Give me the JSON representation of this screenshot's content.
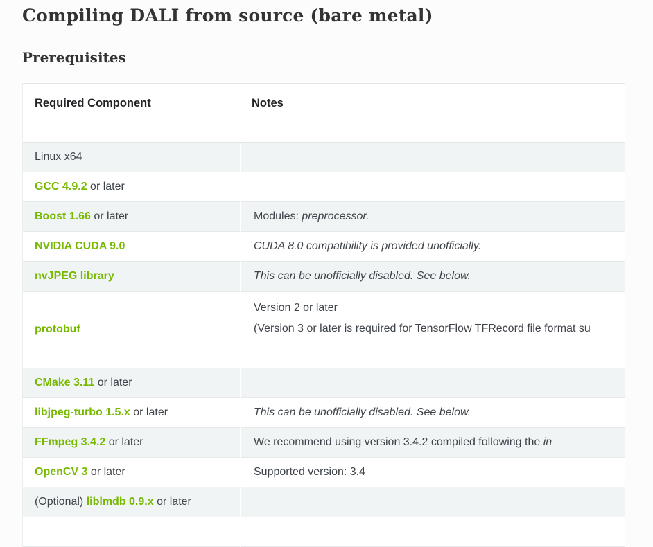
{
  "page": {
    "title": "Compiling DALI from source (bare metal)",
    "section": "Prerequisites"
  },
  "colors": {
    "link_green": "#76b900",
    "row_stripe": "#f1f4f5",
    "heading_text": "#333333",
    "body_text": "#3f444a",
    "table_border": "#e2e5e5"
  },
  "table": {
    "headers": [
      "Required Component",
      "Notes"
    ],
    "rows": [
      {
        "component": [
          {
            "text": "Linux x64"
          }
        ],
        "notes": []
      },
      {
        "component": [
          {
            "text": "GCC 4.9.2",
            "link": true
          },
          {
            "text": " or later"
          }
        ],
        "notes": []
      },
      {
        "component": [
          {
            "text": "Boost 1.66",
            "link": true
          },
          {
            "text": " or later"
          }
        ],
        "notes": [
          {
            "segments": [
              {
                "text": "Modules: "
              },
              {
                "text": "preprocessor.",
                "italic": true
              }
            ]
          }
        ]
      },
      {
        "component": [
          {
            "text": "NVIDIA CUDA 9.0",
            "link": true
          }
        ],
        "notes": [
          {
            "segments": [
              {
                "text": "CUDA 8.0 compatibility is provided unofficially.",
                "italic": true
              }
            ]
          }
        ]
      },
      {
        "component": [
          {
            "text": "nvJPEG library",
            "link": true
          }
        ],
        "notes": [
          {
            "segments": [
              {
                "text": "This can be unofficially disabled. See below.",
                "italic": true
              }
            ]
          }
        ]
      },
      {
        "component": [
          {
            "text": "protobuf",
            "link": true
          }
        ],
        "notes": [
          {
            "segments": [
              {
                "text": "Version 2 or later"
              }
            ]
          },
          {
            "segments": [
              {
                "text": "(Version 3 or later is required for TensorFlow TFRecord file format su"
              }
            ],
            "truncated": true
          }
        ],
        "tall": true
      },
      {
        "component": [
          {
            "text": "CMake 3.11",
            "link": true
          },
          {
            "text": " or later"
          }
        ],
        "notes": []
      },
      {
        "component": [
          {
            "text": "libjpeg-turbo 1.5.x",
            "link": true
          },
          {
            "text": " or later"
          }
        ],
        "notes": [
          {
            "segments": [
              {
                "text": "This can be unofficially disabled. See below.",
                "italic": true
              }
            ]
          }
        ]
      },
      {
        "component": [
          {
            "text": "FFmpeg 3.4.2",
            "link": true
          },
          {
            "text": " or later"
          }
        ],
        "notes": [
          {
            "segments": [
              {
                "text": "We recommend using version 3.4.2 compiled following the "
              },
              {
                "text": "in",
                "italic": true
              }
            ],
            "truncated": true
          }
        ]
      },
      {
        "component": [
          {
            "text": "OpenCV 3",
            "link": true
          },
          {
            "text": " or later"
          }
        ],
        "notes": [
          {
            "segments": [
              {
                "text": "Supported version: 3.4"
              }
            ]
          }
        ]
      },
      {
        "component": [
          {
            "text": "(Optional) "
          },
          {
            "text": "liblmdb 0.9.x",
            "link": true
          },
          {
            "text": " or later"
          }
        ],
        "notes": []
      },
      {
        "component": [],
        "notes": []
      }
    ]
  }
}
